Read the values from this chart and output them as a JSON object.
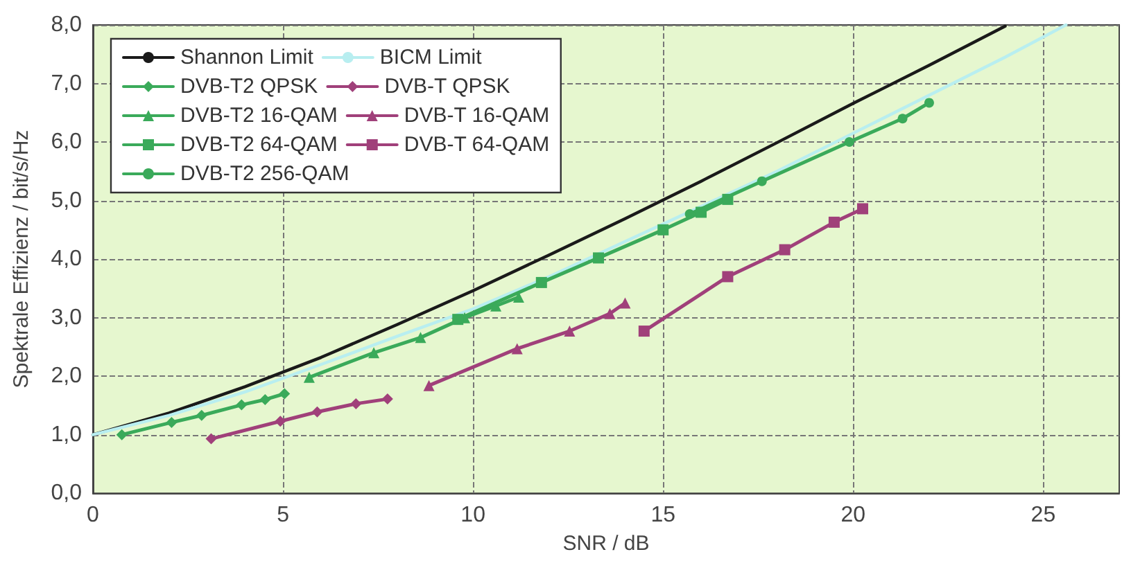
{
  "chart_data": {
    "type": "line",
    "xlabel": "SNR / dB",
    "ylabel": "Spektrale Effizienz / bit/s/Hz",
    "xlim": [
      0,
      27
    ],
    "xticks": [
      0,
      5,
      10,
      15,
      20,
      25
    ],
    "ylim": [
      0,
      8
    ],
    "yticks": [
      {
        "value": 0,
        "label": "0,0"
      },
      {
        "value": 1,
        "label": "1,0"
      },
      {
        "value": 2,
        "label": "2,0"
      },
      {
        "value": 3,
        "label": "3,0"
      },
      {
        "value": 4,
        "label": "4,0"
      },
      {
        "value": 5,
        "label": "5,0"
      },
      {
        "value": 6,
        "label": "6,0"
      },
      {
        "value": 7,
        "label": "7,0"
      },
      {
        "value": 8,
        "label": "8,0"
      }
    ],
    "grid": true,
    "legend": "top left",
    "line_style": "solid",
    "series": [
      {
        "name": "Shannon Limit",
        "color": "#1a1a1a",
        "marker": "none",
        "x": [
          0,
          2,
          4,
          6,
          8,
          10,
          12,
          14,
          16,
          18,
          20,
          22,
          24
        ],
        "values": [
          1.0,
          1.37,
          1.82,
          2.32,
          2.88,
          3.46,
          4.07,
          4.69,
          5.33,
          5.99,
          6.66,
          7.31,
          7.98
        ]
      },
      {
        "name": "BICM Limit",
        "color": "#b8eef0",
        "marker": "none",
        "x": [
          0,
          2,
          4,
          6,
          8,
          10,
          12,
          14,
          16,
          18,
          20,
          22,
          24,
          25.6
        ],
        "values": [
          1.0,
          1.33,
          1.73,
          2.2,
          2.68,
          3.15,
          3.7,
          4.3,
          4.9,
          5.5,
          6.15,
          6.8,
          7.45,
          8.0
        ]
      },
      {
        "name": "DVB-T2 QPSK",
        "color": "#3aaa5a",
        "marker": "diamond",
        "x": [
          0.76,
          2.07,
          2.86,
          3.91,
          4.53,
          5.04
        ],
        "values": [
          1.0,
          1.21,
          1.33,
          1.51,
          1.6,
          1.7
        ]
      },
      {
        "name": "DVB-T QPSK",
        "color": "#a0407a",
        "marker": "diamond",
        "x": [
          3.11,
          4.93,
          5.9,
          6.92,
          7.75
        ],
        "values": [
          0.93,
          1.23,
          1.39,
          1.53,
          1.61
        ]
      },
      {
        "name": "DVB-T2 16-QAM",
        "color": "#3aaa5a",
        "marker": "triangle",
        "x": [
          5.69,
          7.39,
          8.62,
          9.78,
          10.6,
          11.2
        ],
        "values": [
          1.98,
          2.4,
          2.66,
          3.0,
          3.2,
          3.35
        ]
      },
      {
        "name": "DVB-T 16-QAM",
        "color": "#a0407a",
        "marker": "triangle",
        "x": [
          8.84,
          11.16,
          12.54,
          13.6,
          14.0
        ],
        "values": [
          1.84,
          2.47,
          2.77,
          3.07,
          3.25
        ]
      },
      {
        "name": "DVB-T2 64-QAM",
        "color": "#3aaa5a",
        "marker": "square",
        "x": [
          9.6,
          11.8,
          13.3,
          15.0,
          16.0,
          16.7
        ],
        "values": [
          2.97,
          3.6,
          4.02,
          4.5,
          4.8,
          5.02
        ]
      },
      {
        "name": "DVB-T 64-QAM",
        "color": "#a0407a",
        "marker": "square",
        "x": [
          14.5,
          16.7,
          18.2,
          19.5,
          20.25
        ],
        "values": [
          2.77,
          3.7,
          4.16,
          4.63,
          4.86
        ]
      },
      {
        "name": "DVB-T2 256-QAM",
        "color": "#3aaa5a",
        "marker": "circle",
        "x": [
          15.7,
          17.6,
          19.9,
          21.3,
          22.0
        ],
        "values": [
          4.77,
          5.33,
          6.0,
          6.4,
          6.67
        ]
      }
    ]
  }
}
